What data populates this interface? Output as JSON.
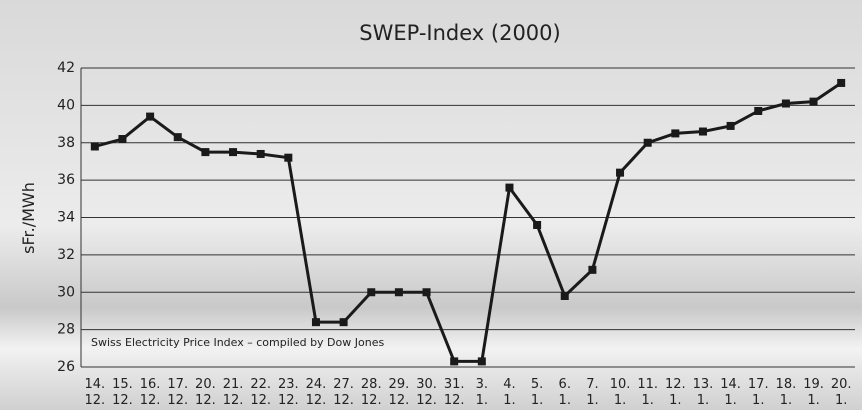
{
  "chart_data": {
    "type": "line",
    "title": "SWEP-Index (2000)",
    "y_label": "sFr./MWh",
    "annotation": "Swiss Electricity Price Index – compiled by Dow Jones",
    "categories": [
      [
        "14.",
        "12."
      ],
      [
        "15.",
        "12."
      ],
      [
        "16.",
        "12."
      ],
      [
        "17.",
        "12."
      ],
      [
        "20.",
        "12."
      ],
      [
        "21.",
        "12."
      ],
      [
        "22.",
        "12."
      ],
      [
        "23.",
        "12."
      ],
      [
        "24.",
        "12."
      ],
      [
        "27.",
        "12."
      ],
      [
        "28.",
        "12."
      ],
      [
        "29.",
        "12."
      ],
      [
        "30.",
        "12."
      ],
      [
        "31.",
        "12."
      ],
      [
        "3.",
        "1."
      ],
      [
        "4.",
        "1."
      ],
      [
        "5.",
        "1."
      ],
      [
        "6.",
        "1."
      ],
      [
        "7.",
        "1."
      ],
      [
        "10.",
        "1."
      ],
      [
        "11.",
        "1."
      ],
      [
        "12.",
        "1."
      ],
      [
        "13.",
        "1."
      ],
      [
        "14.",
        "1."
      ],
      [
        "17.",
        "1."
      ],
      [
        "18.",
        "1."
      ],
      [
        "19.",
        "1."
      ],
      [
        "20.",
        "1."
      ]
    ],
    "values": [
      37.8,
      38.2,
      39.4,
      38.3,
      37.5,
      37.5,
      37.4,
      37.2,
      28.4,
      28.4,
      30.0,
      30.0,
      30.0,
      26.3,
      26.3,
      35.6,
      33.6,
      29.8,
      31.2,
      36.4,
      38.0,
      38.5,
      38.6,
      38.9,
      39.7,
      40.1,
      40.2,
      41.2
    ],
    "color": "#1a1a1a",
    "ylim": [
      26,
      42
    ],
    "yticks": [
      26,
      28,
      30,
      32,
      34,
      36,
      38,
      40,
      42
    ],
    "grid": true
  }
}
